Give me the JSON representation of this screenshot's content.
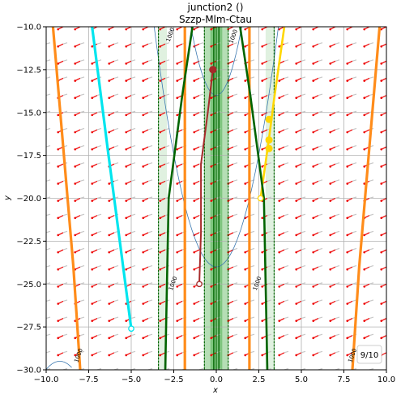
{
  "chart_data": {
    "type": "line",
    "title": "junction2 ()",
    "subtitle": "Szzp-Mlm-Ctau",
    "xlabel": "x",
    "ylabel": "y",
    "xlim": [
      -10,
      10
    ],
    "ylim": [
      -30,
      -10
    ],
    "xticks": [
      -10,
      -7.5,
      -5,
      -2.5,
      0,
      2.5,
      5,
      7.5,
      10
    ],
    "xtick_labels": [
      "−10.0",
      "−7.5",
      "−5.0",
      "−2.5",
      "0.0",
      "2.5",
      "5.0",
      "7.5",
      "10.0"
    ],
    "yticks": [
      -10,
      -12.5,
      -15,
      -17.5,
      -20,
      -22.5,
      -25,
      -27.5,
      -30
    ],
    "ytick_labels": [
      "−10.0",
      "−12.5",
      "−15.0",
      "−17.5",
      "−20.0",
      "−22.5",
      "−25.0",
      "−27.5",
      "−30.0"
    ],
    "grid": true,
    "annotation": "9/10",
    "contour_labels": [
      {
        "text": "1000",
        "x": -2.6,
        "y": -10.5
      },
      {
        "text": "1000",
        "x": 1.1,
        "y": -10.6
      },
      {
        "text": "1000",
        "x": -2.45,
        "y": -25.0
      },
      {
        "text": "1000",
        "x": 2.5,
        "y": -25.0
      },
      {
        "text": "1000",
        "x": -8.0,
        "y": -29.2
      },
      {
        "text": "1000",
        "x": 8.1,
        "y": -29.2
      }
    ],
    "colors": {
      "orange": "#ff8c1a",
      "cyan": "#00e5ee",
      "gold": "#ffd700",
      "darkred": "#a52a2a",
      "darkgreen": "#006400",
      "contour": "#3b78b0",
      "green_band": "#2ca02c",
      "arrow_red": "#ee0000",
      "arrow_grey": "#c8c8c8"
    },
    "series": [
      {
        "role": "orange-curve-1",
        "x": [
          -9.6,
          -9.0,
          -8.4,
          -8.0
        ],
        "y": [
          -10,
          -17,
          -24,
          -30
        ]
      },
      {
        "role": "orange-curve-2",
        "x": [
          -1.85,
          -1.85
        ],
        "y": [
          -10,
          -30
        ]
      },
      {
        "role": "orange-curve-3",
        "x": [
          1.95,
          1.95
        ],
        "y": [
          -10,
          -30
        ]
      },
      {
        "role": "orange-curve-4",
        "x": [
          9.6,
          9.0,
          8.4,
          8.0
        ],
        "y": [
          -10,
          -17,
          -24,
          -30
        ]
      },
      {
        "role": "cyan-curve",
        "x": [
          -7.3,
          -6.4,
          -5.0
        ],
        "y": [
          -10,
          -17,
          -27.6
        ]
      },
      {
        "role": "gold-curve",
        "x": [
          4.0,
          3.4,
          3.1,
          2.6
        ],
        "y": [
          -10,
          -14.2,
          -16.5,
          -20
        ]
      },
      {
        "role": "gold-markers",
        "x": [
          3.1,
          3.1,
          3.1
        ],
        "y": [
          -15.4,
          -16.6,
          -17.1
        ]
      },
      {
        "role": "darkred-curve",
        "x": [
          -0.2,
          -0.5,
          -0.9,
          -0.9,
          -1.0
        ],
        "y": [
          -12.5,
          -15.0,
          -18.0,
          -22.0,
          -25.0
        ]
      },
      {
        "role": "darkgreen-curve-left",
        "x": [
          -3.0,
          -2.8,
          -2.0,
          -1.4
        ],
        "y": [
          -30,
          -20,
          -14,
          -10
        ]
      },
      {
        "role": "darkgreen-curve-right",
        "x": [
          3.0,
          2.8,
          2.0,
          1.4
        ],
        "y": [
          -30,
          -20,
          -14,
          -10
        ]
      },
      {
        "role": "green-band-center",
        "x": [
          0.0,
          0.0
        ],
        "y": [
          -10,
          -30
        ]
      }
    ],
    "markers": [
      {
        "role": "cyan-end",
        "x": -5.0,
        "y": -27.6,
        "hollow": true
      },
      {
        "role": "gold-end",
        "x": 2.6,
        "y": -20.0,
        "hollow": true
      },
      {
        "role": "darkred-end",
        "x": -1.0,
        "y": -25.0,
        "hollow": true
      },
      {
        "role": "darkred-start",
        "x": -0.2,
        "y": -12.5,
        "hollow": false
      }
    ]
  }
}
